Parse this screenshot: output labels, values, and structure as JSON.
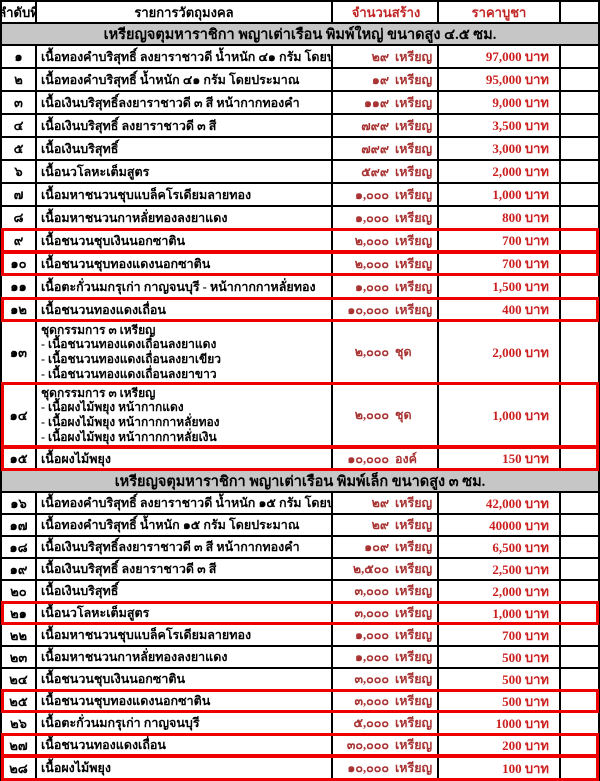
{
  "colors": {
    "table_border": "#000000",
    "section_bg": "#c6c6c6",
    "quantity_red": "#a83232",
    "price_red": "#cc2020",
    "highlight_box_red": "#ee0000",
    "header_accent_red": "#c22525"
  },
  "table": {
    "columns": [
      "ลำดับที่",
      "รายการวัตถุมงคล",
      "จำนวนสร้าง",
      "ราคาบูชา"
    ],
    "sections": [
      {
        "title": "เหรียญจตุมหาราชิกา พญาเต่าเรือน พิมพ์ใหญ่ ขนาดสูง ๔.๕ ซม.",
        "rows": [
          {
            "no": "๑",
            "desc": "เนื้อทองคำบริสุทธิ์ ลงยาราชาวดี น้ำหนัก ๔๑ กรัม โดยประมาณ",
            "sub": [],
            "qty": "๒๙",
            "unit": "เหรียญ",
            "price": "97,000 บาท",
            "highlight": false
          },
          {
            "no": "๒",
            "desc": "เนื้อทองคำบริสุทธิ์  น้ำหนัก ๔๑ กรัม โดยประมาณ",
            "sub": [],
            "qty": "๑๙",
            "unit": "เหรียญ",
            "price": "95,000 บาท",
            "highlight": false
          },
          {
            "no": "๓",
            "desc": "เนื้อเงินบริสุทธิ์ลงยาราชาวดี ๓ สี หน้ากากทองคำ",
            "sub": [],
            "qty": "๑๑๙",
            "unit": "เหรียญ",
            "price": "9,000 บาท",
            "highlight": false
          },
          {
            "no": "๔",
            "desc": "เนื้อเงินบริสุทธิ์ ลงยาราชาวดี ๓ สี",
            "sub": [],
            "qty": "๗๙๙",
            "unit": "เหรียญ",
            "price": "3,500 บาท",
            "highlight": false
          },
          {
            "no": "๕",
            "desc": "เนื้อเงินบริสุทธิ์",
            "sub": [],
            "qty": "๗๙๙",
            "unit": "เหรียญ",
            "price": "3,000 บาท",
            "highlight": false
          },
          {
            "no": "๖",
            "desc": "เนื้อนวโลหะเต็มสูตร",
            "sub": [],
            "qty": "๕๙๙",
            "unit": "เหรียญ",
            "price": "2,000 บาท",
            "highlight": false
          },
          {
            "no": "๗",
            "desc": "เนื้อมหาชนวนชุบแบล็คโรเดียมลายทอง",
            "sub": [],
            "qty": "๑,๐๐๐",
            "unit": "เหรียญ",
            "price": "1,000 บาท",
            "highlight": false
          },
          {
            "no": "๘",
            "desc": "เนื้อมหาชนวนกาหลั่ยทองลงยาแดง",
            "sub": [],
            "qty": "๑,๐๐๐",
            "unit": "เหรียญ",
            "price": "800 บาท",
            "highlight": false
          },
          {
            "no": "๙",
            "desc": "เนื้อชนวนชุบเงินนอกซาติน",
            "sub": [],
            "qty": "๒,๐๐๐",
            "unit": "เหรียญ",
            "price": "700 บาท",
            "highlight": true
          },
          {
            "no": "๑๐",
            "desc": "เนื้อชนวนชุบทองแดงนอกซาติน",
            "sub": [],
            "qty": "๒,๐๐๐",
            "unit": "เหรียญ",
            "price": "700 บาท",
            "highlight": true
          },
          {
            "no": "๑๑",
            "desc": "เนื้อตะกั่วนมกรุเก่า กาญจนบุรี - หน้ากากกาหลั่ยทอง",
            "sub": [],
            "qty": "๑,๐๐๐",
            "unit": "เหรียญ",
            "price": "1,500 บาท",
            "highlight": false
          },
          {
            "no": "๑๒",
            "desc": "เนื้อชนวนทองแดงเถื่อน",
            "sub": [],
            "qty": "๑๐,๐๐๐",
            "unit": "เหรียญ",
            "price": "400 บาท",
            "highlight": true
          },
          {
            "no": "๑๓",
            "desc": "ชุดกรรมการ ๓ เหรียญ",
            "sub": [
              "- เนื้อชนวนทองแดงเถื่อนลงยาแดง",
              "- เนื้อชนวนทองแดงเถื่อนลงยาเขียว",
              "- เนื้อชนวนทองแดงเถื่อนลงยาขาว"
            ],
            "qty": "๒,๐๐๐",
            "unit": "ชุด",
            "price": "2,000 บาท",
            "highlight": false
          },
          {
            "no": "๑๔",
            "desc": "ชุดกรรมการ ๓ เหรียญ",
            "sub": [
              "- เนื้อผงไม้พยุง หน้ากากแดง",
              "- เนื้อผงไม้พยุง หน้ากากกาหลั่ยทอง",
              "- เนื้อผงไม้พยุง หน้ากากกาหลั่ยเงิน"
            ],
            "qty": "๒,๐๐๐",
            "unit": "ชุด",
            "price": "1,000 บาท",
            "highlight": true
          },
          {
            "no": "๑๕",
            "desc": "เนื้อผงไม้พยุง",
            "sub": [],
            "qty": "๑๐,๐๐๐",
            "unit": "องค์",
            "price": "150 บาท",
            "highlight": true
          }
        ]
      },
      {
        "title": "เหรียญจตุมหาราชิกา พญาเต่าเรือน พิมพ์เล็ก ขนาดสูง ๓ ซม.",
        "rows": [
          {
            "no": "๑๖",
            "desc": "เนื้อทองคำบริสุทธิ์ ลงยาราชาวดี น้ำหนัก ๑๕ กรัม โดยประมาณ",
            "sub": [],
            "qty": "๒๙",
            "unit": "เหรียญ",
            "price": "42,000 บาท",
            "highlight": false
          },
          {
            "no": "๑๗",
            "desc": "เนื้อทองคำบริสุทธิ์  น้ำหนัก ๑๕ กรัม โดยประมาณ",
            "sub": [],
            "qty": "๒๙",
            "unit": "เหรียญ",
            "price": "40000 บาท",
            "highlight": false
          },
          {
            "no": "๑๘",
            "desc": "เนื้อเงินบริสุทธิ์ลงยาราชาวดี ๓ สี หน้ากากทองคำ",
            "sub": [],
            "qty": "๑๐๙",
            "unit": "เหรียญ",
            "price": "6,500 บาท",
            "highlight": false
          },
          {
            "no": "๑๙",
            "desc": "เนื้อเงินบริสุทธิ์ ลงยาราชาวดี ๓ สี",
            "sub": [],
            "qty": "๒,๕๐๐",
            "unit": "เหรียญ",
            "price": "2,500 บาท",
            "highlight": false
          },
          {
            "no": "๒๐",
            "desc": "เนื้อเงินบริสุทธิ์",
            "sub": [],
            "qty": "๓,๐๐๐",
            "unit": "เหรียญ",
            "price": "2,000 บาท",
            "highlight": false
          },
          {
            "no": "๒๑",
            "desc": "เนื้อนวโลหะเต็มสูตร",
            "sub": [],
            "qty": "๓,๐๐๐",
            "unit": "เหรียญ",
            "price": "1,000 บาท",
            "highlight": true
          },
          {
            "no": "๒๒",
            "desc": "เนื้อมหาชนวนชุบแบล็คโรเดียมลายทอง",
            "sub": [],
            "qty": "๑,๐๐๐",
            "unit": "เหรียญ",
            "price": "700 บาท",
            "highlight": false
          },
          {
            "no": "๒๓",
            "desc": "เนื้อมหาชนวนกาหลั่ยทองลงยาแดง",
            "sub": [],
            "qty": "๑,๐๐๐",
            "unit": "เหรียญ",
            "price": "500 บาท",
            "highlight": false
          },
          {
            "no": "๒๔",
            "desc": "เนื้อชนวนชุบเงินนอกซาติน",
            "sub": [],
            "qty": "๓,๐๐๐",
            "unit": "เหรียญ",
            "price": "500 บาท",
            "highlight": false
          },
          {
            "no": "๒๕",
            "desc": "เนื้อชนวนชุบทองแดงนอกซาติน",
            "sub": [],
            "qty": "๓,๐๐๐",
            "unit": "เหรียญ",
            "price": "500 บาท",
            "highlight": true
          },
          {
            "no": "๒๖",
            "desc": "เนื้อตะกั่วนมกรุเก่า กาญจนบุรี",
            "sub": [],
            "qty": "๕,๐๐๐",
            "unit": "เหรียญ",
            "price": "1000 บาท",
            "highlight": false
          },
          {
            "no": "๒๗",
            "desc": "เนื้อชนวนทองแดงเถื่อน",
            "sub": [],
            "qty": "๓๐,๐๐๐",
            "unit": "เหรียญ",
            "price": "200 บาท",
            "highlight": true
          },
          {
            "no": "๒๘",
            "desc": "เนื้อผงไม้พยุง",
            "sub": [],
            "qty": "๑๐,๐๐๐",
            "unit": "เหรียญ",
            "price": "100 บาท",
            "highlight": true
          }
        ]
      }
    ]
  }
}
